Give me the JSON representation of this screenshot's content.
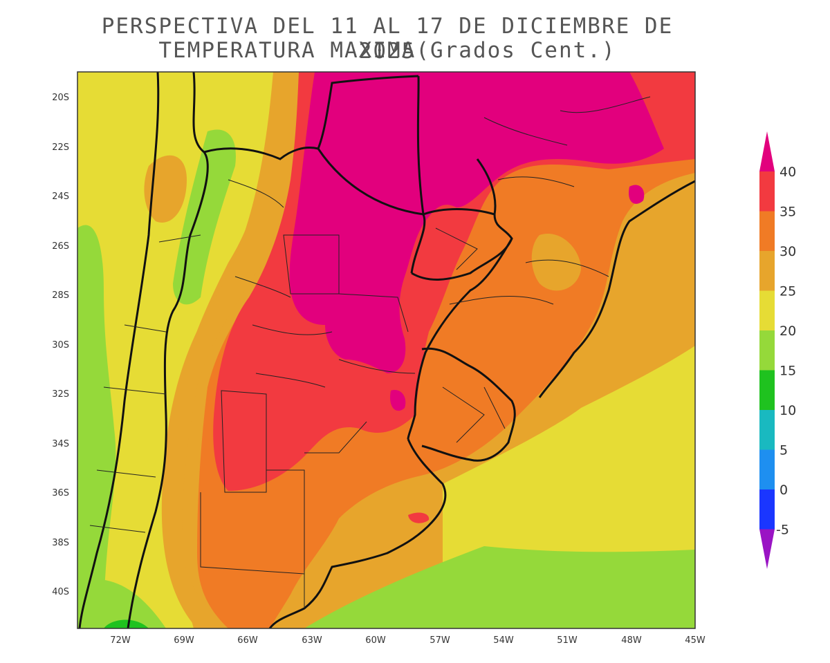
{
  "title": {
    "line1": "PERSPECTIVA DEL 11 AL 17 DE DICIEMBRE DE 2025",
    "line2": "TEMPERATURA MAXIMA(Grados Cent.)"
  },
  "map": {
    "lat_labels": [
      "20S",
      "22S",
      "24S",
      "26S",
      "28S",
      "30S",
      "32S",
      "34S",
      "36S",
      "38S",
      "40S"
    ],
    "lon_labels": [
      "72W",
      "69W",
      "66W",
      "63W",
      "60W",
      "57W",
      "54W",
      "51W",
      "48W",
      "45W"
    ],
    "lon_range": [
      -74,
      -45
    ],
    "lat_range": [
      -19,
      -41.5
    ]
  },
  "legend": {
    "labels": [
      "40",
      "35",
      "30",
      "25",
      "20",
      "15",
      "10",
      "5",
      "0",
      "-5"
    ],
    "colors": {
      "above_40": "#e2007d",
      "35_40": "#f23a40",
      "30_35": "#f07b25",
      "25_30": "#e7a52c",
      "20_25": "#e6dc35",
      "15_20": "#95d93a",
      "10_15": "#1fc21f",
      "5_10": "#19b9c0",
      "0_5": "#1e8ff0",
      "m5_0": "#1a36ff",
      "below_m5": "#9a14c4"
    }
  }
}
